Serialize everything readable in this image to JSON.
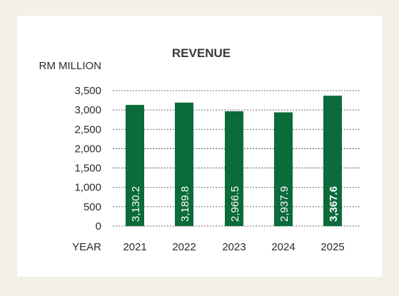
{
  "chart_data": {
    "type": "bar",
    "title": "REVENUE",
    "ylabel": "RM MILLION",
    "xlabel": "YEAR",
    "categories": [
      "2021",
      "2022",
      "2023",
      "2024",
      "2025"
    ],
    "values": [
      3130.2,
      3189.8,
      2966.5,
      2937.9,
      3367.6
    ],
    "value_labels": [
      "3,130.2",
      "3,189.8",
      "2,966.5",
      "2,937.9",
      "3,367.6"
    ],
    "bold_labels": [
      false,
      false,
      false,
      false,
      true
    ],
    "ylim": [
      0,
      3500
    ],
    "yticks": [
      0,
      500,
      1000,
      1500,
      2000,
      2500,
      3000,
      3500
    ],
    "ytick_labels": [
      "0",
      "500",
      "1,000",
      "1,500",
      "2,000",
      "2,500",
      "3,000",
      "3,500"
    ],
    "grid": true,
    "grid_style": "dashed",
    "bar_color": "#0b6b3a"
  }
}
